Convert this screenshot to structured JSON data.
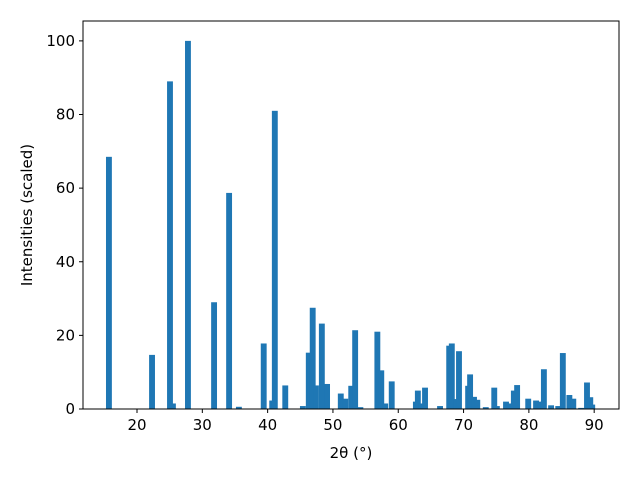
{
  "chart_data": {
    "type": "bar",
    "xlabel": "2θ (°)",
    "ylabel": "Intensities (scaled)",
    "color": "#1f77b4",
    "x": [
      15.7,
      22.3,
      25.05,
      25.5,
      27.8,
      31.8,
      34.1,
      35.6,
      39.4,
      40.7,
      41.1,
      42.7,
      45.4,
      46.3,
      46.9,
      47.4,
      48.3,
      49.1,
      51.2,
      51.9,
      52.8,
      53.4,
      54.2,
      56.8,
      57.4,
      58.0,
      59.0,
      62.7,
      63.0,
      63.5,
      64.1,
      66.4,
      67.8,
      68.2,
      68.9,
      69.3,
      70.7,
      71.0,
      71.6,
      72.1,
      73.4,
      74.7,
      75.1,
      76.5,
      77.1,
      77.7,
      78.2,
      79.9,
      81.1,
      81.7,
      82.3,
      83.4,
      84.5,
      85.2,
      86.2,
      86.8,
      88.0,
      88.9,
      89.4,
      89.7
    ],
    "values": [
      68.5,
      14.7,
      89,
      1.5,
      100,
      29,
      58.7,
      0.6,
      17.8,
      2.3,
      81,
      6.4,
      0.8,
      15.3,
      27.5,
      6.4,
      23.2,
      6.8,
      4.2,
      2.8,
      6.3,
      21.4,
      0.5,
      21,
      10.5,
      1.5,
      7.5,
      2,
      5,
      1.5,
      5.8,
      0.8,
      17.2,
      17.8,
      2.7,
      15.7,
      6.3,
      9.4,
      3.3,
      2.5,
      0.5,
      5.8,
      0.8,
      2,
      1.5,
      5,
      6.5,
      2.8,
      2.3,
      2,
      10.8,
      1,
      0.8,
      15.2,
      3.8,
      2.8,
      0.3,
      7.2,
      3.2,
      1.2
    ],
    "xlim": [
      11.73,
      93.8
    ],
    "ylim": [
      0,
      105.4
    ],
    "xticks": [
      20,
      30,
      40,
      50,
      60,
      70,
      80,
      90
    ],
    "yticks": [
      0,
      20,
      40,
      60,
      80,
      100
    ]
  }
}
